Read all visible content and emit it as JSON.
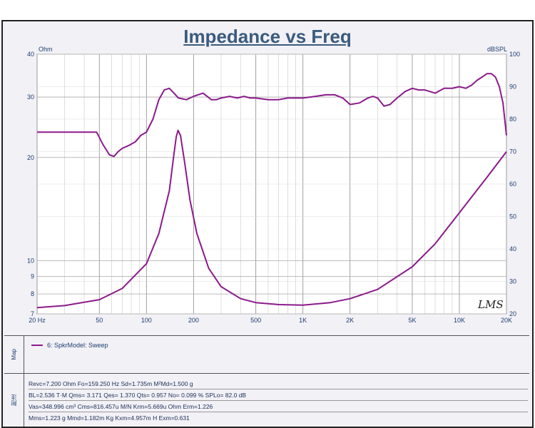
{
  "title": "Impedance vs Freq",
  "left_unit": "Ohm",
  "right_unit": "dBSPL",
  "watermark": "LMS",
  "legend": {
    "tab_label": "Map",
    "item": "6: SpkrModel: Sweep",
    "color": "#8b1a8b"
  },
  "params": {
    "tab_label": "附注",
    "rows": [
      "Revc=7.200 Ohm  Fo=159.250 Hz  Sd=1.735m M²Md=1.500 g",
      "BL=2.536 T·M  Qms= 3.171  Qes= 1.370  Qts= 0.957  No= 0.099 %  SPLo= 82.0 dB",
      "Vas=348.996 cm³ Cms=816.457u M/N  Krm=5.669u Ohm  Erm=1.226",
      "Mms=1.223 g  Mmd=1.182m Kg  Kxm=4.957m H  Exm=0.631"
    ]
  },
  "chart_data": {
    "type": "line",
    "title": "Impedance vs Freq",
    "xscale": "log",
    "xlim": [
      20,
      20000
    ],
    "x_ticks": [
      20,
      50,
      100,
      200,
      500,
      1000,
      2000,
      5000,
      10000,
      20000
    ],
    "x_tick_labels": [
      "20  Hz",
      "50",
      "100",
      "200",
      "500",
      "1K",
      "2K",
      "5K",
      "10K",
      "20K"
    ],
    "y_left": {
      "label": "Ohm",
      "scale": "log",
      "lim": [
        7,
        40
      ],
      "ticks": [
        7,
        8,
        9,
        10,
        20,
        30,
        40
      ],
      "tick_labels": [
        "7",
        "8",
        "9",
        "10",
        "20",
        "30",
        "40"
      ]
    },
    "y_right": {
      "label": "dBSPL",
      "scale": "linear",
      "lim": [
        20,
        100
      ],
      "ticks": [
        20,
        30,
        40,
        50,
        60,
        70,
        80,
        90,
        100
      ],
      "tick_labels": [
        "20",
        "30",
        "40",
        "50",
        "60",
        "70",
        "80",
        "90",
        "100"
      ]
    },
    "grid": true,
    "series": [
      {
        "axis": "left",
        "color": "#8b1a8b",
        "x": [
          20,
          30,
          50,
          70,
          100,
          120,
          140,
          150,
          155,
          159.25,
          165,
          175,
          190,
          210,
          250,
          300,
          400,
          500,
          700,
          1000,
          1500,
          2000,
          3000,
          5000,
          7000,
          10000,
          15000,
          20000
        ],
        "y": [
          7.3,
          7.4,
          7.7,
          8.3,
          9.8,
          12.0,
          16.0,
          20.5,
          23.0,
          24.0,
          23.2,
          19.5,
          15.0,
          12.0,
          9.5,
          8.4,
          7.75,
          7.55,
          7.45,
          7.42,
          7.55,
          7.75,
          8.25,
          9.6,
          11.2,
          13.8,
          17.5,
          20.8
        ]
      },
      {
        "axis": "right",
        "color": "#8b1a8b",
        "x": [
          20,
          30,
          40,
          48,
          53,
          58,
          62,
          66,
          70,
          78,
          85,
          92,
          100,
          110,
          120,
          130,
          140,
          150,
          160,
          180,
          200,
          230,
          260,
          280,
          300,
          340,
          380,
          420,
          460,
          500,
          600,
          700,
          800,
          900,
          1000,
          1200,
          1400,
          1600,
          1800,
          2000,
          2300,
          2600,
          2800,
          3000,
          3300,
          3600,
          4000,
          4500,
          5000,
          5500,
          6000,
          7000,
          8000,
          9000,
          10000,
          11000,
          12000,
          13000,
          14000,
          15000,
          16000,
          17000,
          18000,
          19000,
          20000
        ],
        "y": [
          76,
          76,
          76,
          76,
          72,
          69,
          68.5,
          70,
          71,
          72,
          73,
          75,
          76,
          80,
          86,
          89,
          89.5,
          88,
          86.5,
          86,
          87,
          88,
          86,
          86,
          86.5,
          87,
          86.5,
          87,
          86.5,
          86.5,
          86,
          86,
          86.5,
          86.5,
          86.5,
          87,
          87.5,
          87.5,
          86.5,
          84.5,
          85,
          86.5,
          87,
          86.5,
          84,
          84.5,
          86.5,
          88.5,
          89.5,
          89,
          89,
          88,
          89.5,
          89.5,
          90,
          89.5,
          90.5,
          92,
          93,
          94,
          94,
          93,
          90,
          85,
          75
        ]
      }
    ]
  }
}
